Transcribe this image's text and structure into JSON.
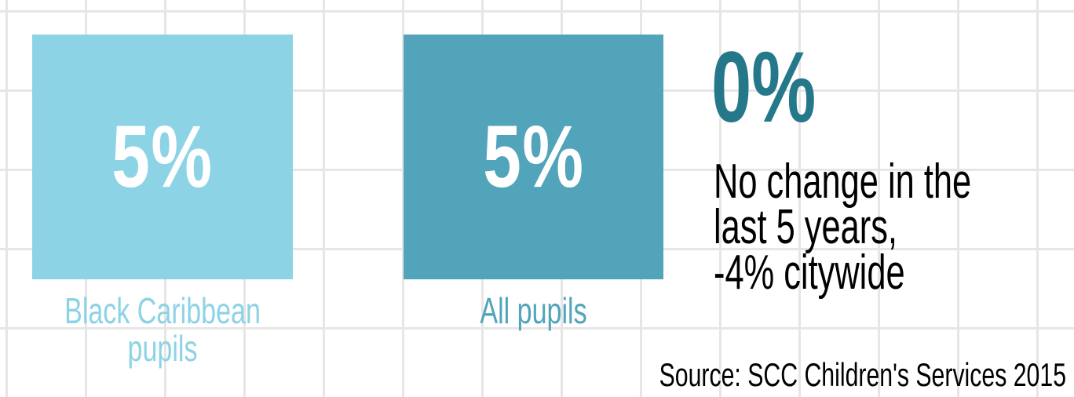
{
  "stats": [
    {
      "value": "5%",
      "label_line1": "Black Caribbean",
      "label_line2": "pupils",
      "color": "#8dd3e6"
    },
    {
      "value": "5%",
      "label_line1": "All pupils",
      "color": "#52a4ba"
    }
  ],
  "headline": {
    "value": "0%",
    "color": "#24788a"
  },
  "note_lines": [
    "No change in the",
    "last 5 years,",
    "-4% citywide"
  ],
  "source": "Source: SCC Children's Services 2015"
}
